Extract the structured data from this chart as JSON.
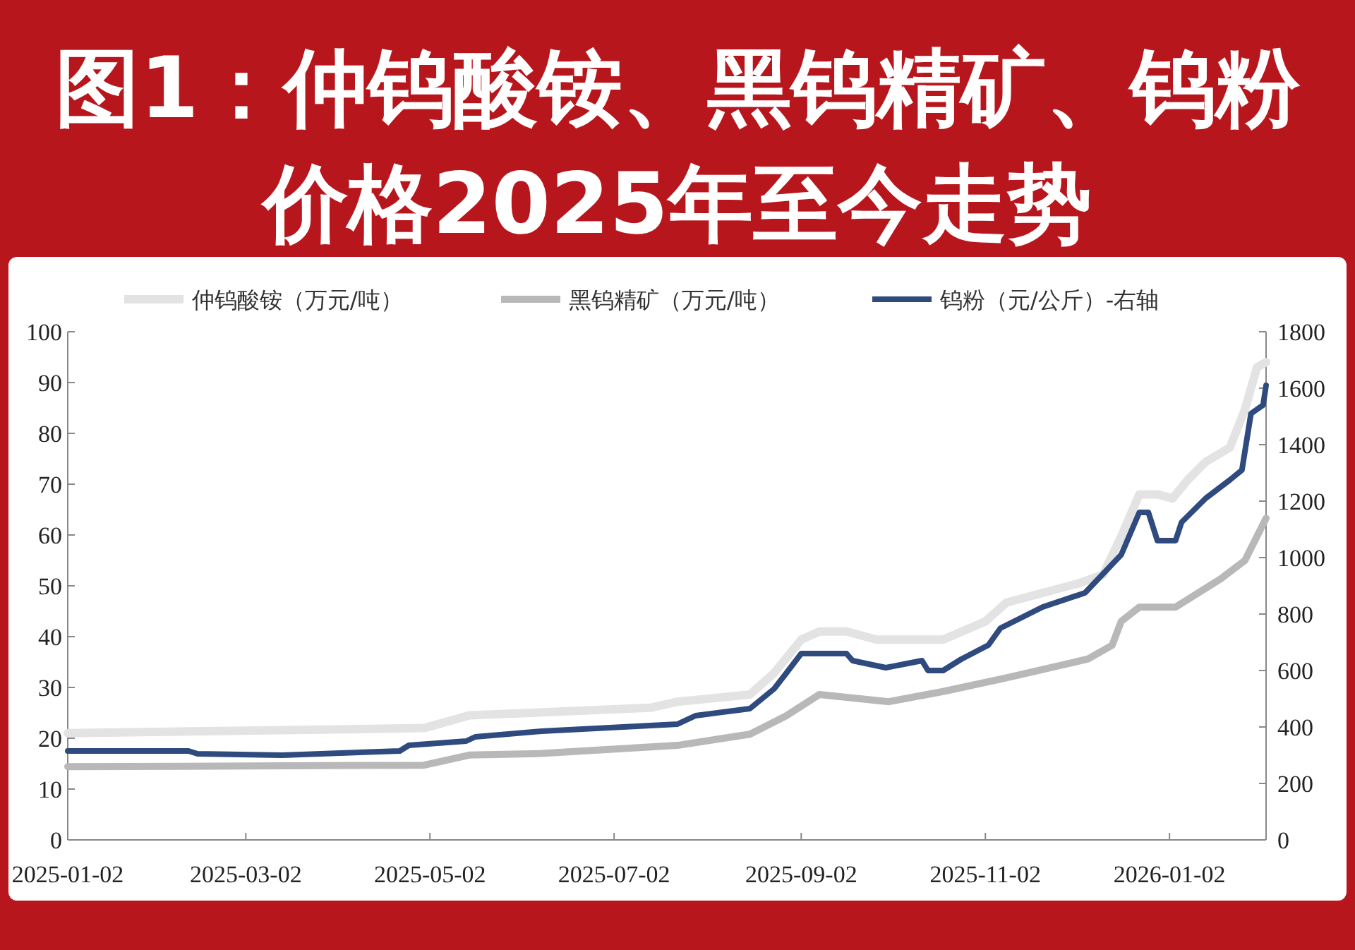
{
  "chart_data": {
    "type": "line",
    "title": "图1：仲钨酸铵、黑钨精矿、钨粉价格2025年至今走势",
    "xlim": [
      "2025-01-02",
      "2026-02-03"
    ],
    "xticks": [
      "2025-01-02",
      "2025-03-02",
      "2025-05-02",
      "2025-07-02",
      "2025-09-02",
      "2025-11-02",
      "2026-01-02"
    ],
    "ylim": [
      0,
      100
    ],
    "yticks": [
      0,
      10,
      20,
      30,
      40,
      50,
      60,
      70,
      80,
      90,
      100
    ],
    "y2lim": [
      0,
      1800
    ],
    "y2ticks": [
      0,
      200,
      400,
      600,
      800,
      1000,
      1200,
      1400,
      1600,
      1800
    ],
    "grid": false,
    "legend": "top",
    "marker": "none",
    "line_style": "solid",
    "series": [
      {
        "name": "仲钨酸铵（万元/吨）",
        "color": "#e3e3e3",
        "x": [
          "2025-01-02",
          "2025-04-30",
          "2025-05-15",
          "2025-07-14",
          "2025-07-23",
          "2025-08-16",
          "2025-08-24",
          "2025-09-02",
          "2025-09-08",
          "2025-09-17",
          "2025-09-27",
          "2025-10-19",
          "2025-11-02",
          "2025-11-09",
          "2025-12-03",
          "2025-12-11",
          "2025-12-17",
          "2025-12-23",
          "2025-12-29",
          "2026-01-03",
          "2026-01-08",
          "2026-01-14",
          "2026-01-22",
          "2026-01-27",
          "2026-01-31",
          "2026-02-03"
        ],
        "values": [
          21,
          22,
          24.5,
          26,
          27.2,
          28.6,
          32.8,
          39.4,
          41,
          41,
          39.4,
          39.4,
          43,
          46.7,
          50.5,
          52.2,
          59.7,
          68,
          68,
          67.2,
          70.8,
          74.4,
          77.2,
          84.7,
          93,
          94
        ]
      },
      {
        "name": "黑钨精矿（万元/吨）",
        "color": "#b8b8b8",
        "x": [
          "2025-01-02",
          "2025-04-30",
          "2025-05-15",
          "2025-06-08",
          "2025-07-23",
          "2025-08-16",
          "2025-08-28",
          "2025-09-08",
          "2025-10-01",
          "2025-10-19",
          "2025-11-09",
          "2025-12-06",
          "2025-12-14",
          "2025-12-17",
          "2025-12-23",
          "2026-01-04",
          "2026-01-19",
          "2026-01-27",
          "2026-02-03"
        ],
        "values": [
          14.4,
          14.7,
          16.7,
          17,
          18.6,
          20.8,
          24.4,
          28.6,
          27.2,
          29.2,
          31.9,
          35.6,
          38.3,
          43,
          45.8,
          45.8,
          51.4,
          55,
          63.3
        ]
      },
      {
        "name": "钨粉（元/公斤）-右轴",
        "color": "#2e4a7e",
        "axis": "y2",
        "x": [
          "2025-01-02",
          "2025-02-11",
          "2025-02-14",
          "2025-03-14",
          "2025-04-22",
          "2025-04-25",
          "2025-05-14",
          "2025-05-17",
          "2025-06-08",
          "2025-07-23",
          "2025-07-29",
          "2025-08-16",
          "2025-08-24",
          "2025-08-28",
          "2025-09-02",
          "2025-09-17",
          "2025-09-19",
          "2025-09-30",
          "2025-10-12",
          "2025-10-14",
          "2025-10-19",
          "2025-10-25",
          "2025-11-03",
          "2025-11-07",
          "2025-11-21",
          "2025-12-05",
          "2025-12-17",
          "2025-12-23",
          "2025-12-26",
          "2025-12-29",
          "2026-01-04",
          "2026-01-06",
          "2026-01-14",
          "2026-01-22",
          "2026-01-26",
          "2026-01-29",
          "2026-02-02",
          "2026-02-03"
        ],
        "values": [
          315,
          315,
          305,
          300,
          315,
          335,
          350,
          365,
          385,
          410,
          440,
          465,
          535,
          590,
          660,
          660,
          635,
          610,
          635,
          600,
          600,
          640,
          690,
          750,
          825,
          875,
          1010,
          1160,
          1160,
          1060,
          1060,
          1125,
          1210,
          1275,
          1310,
          1510,
          1540,
          1610
        ]
      }
    ]
  }
}
